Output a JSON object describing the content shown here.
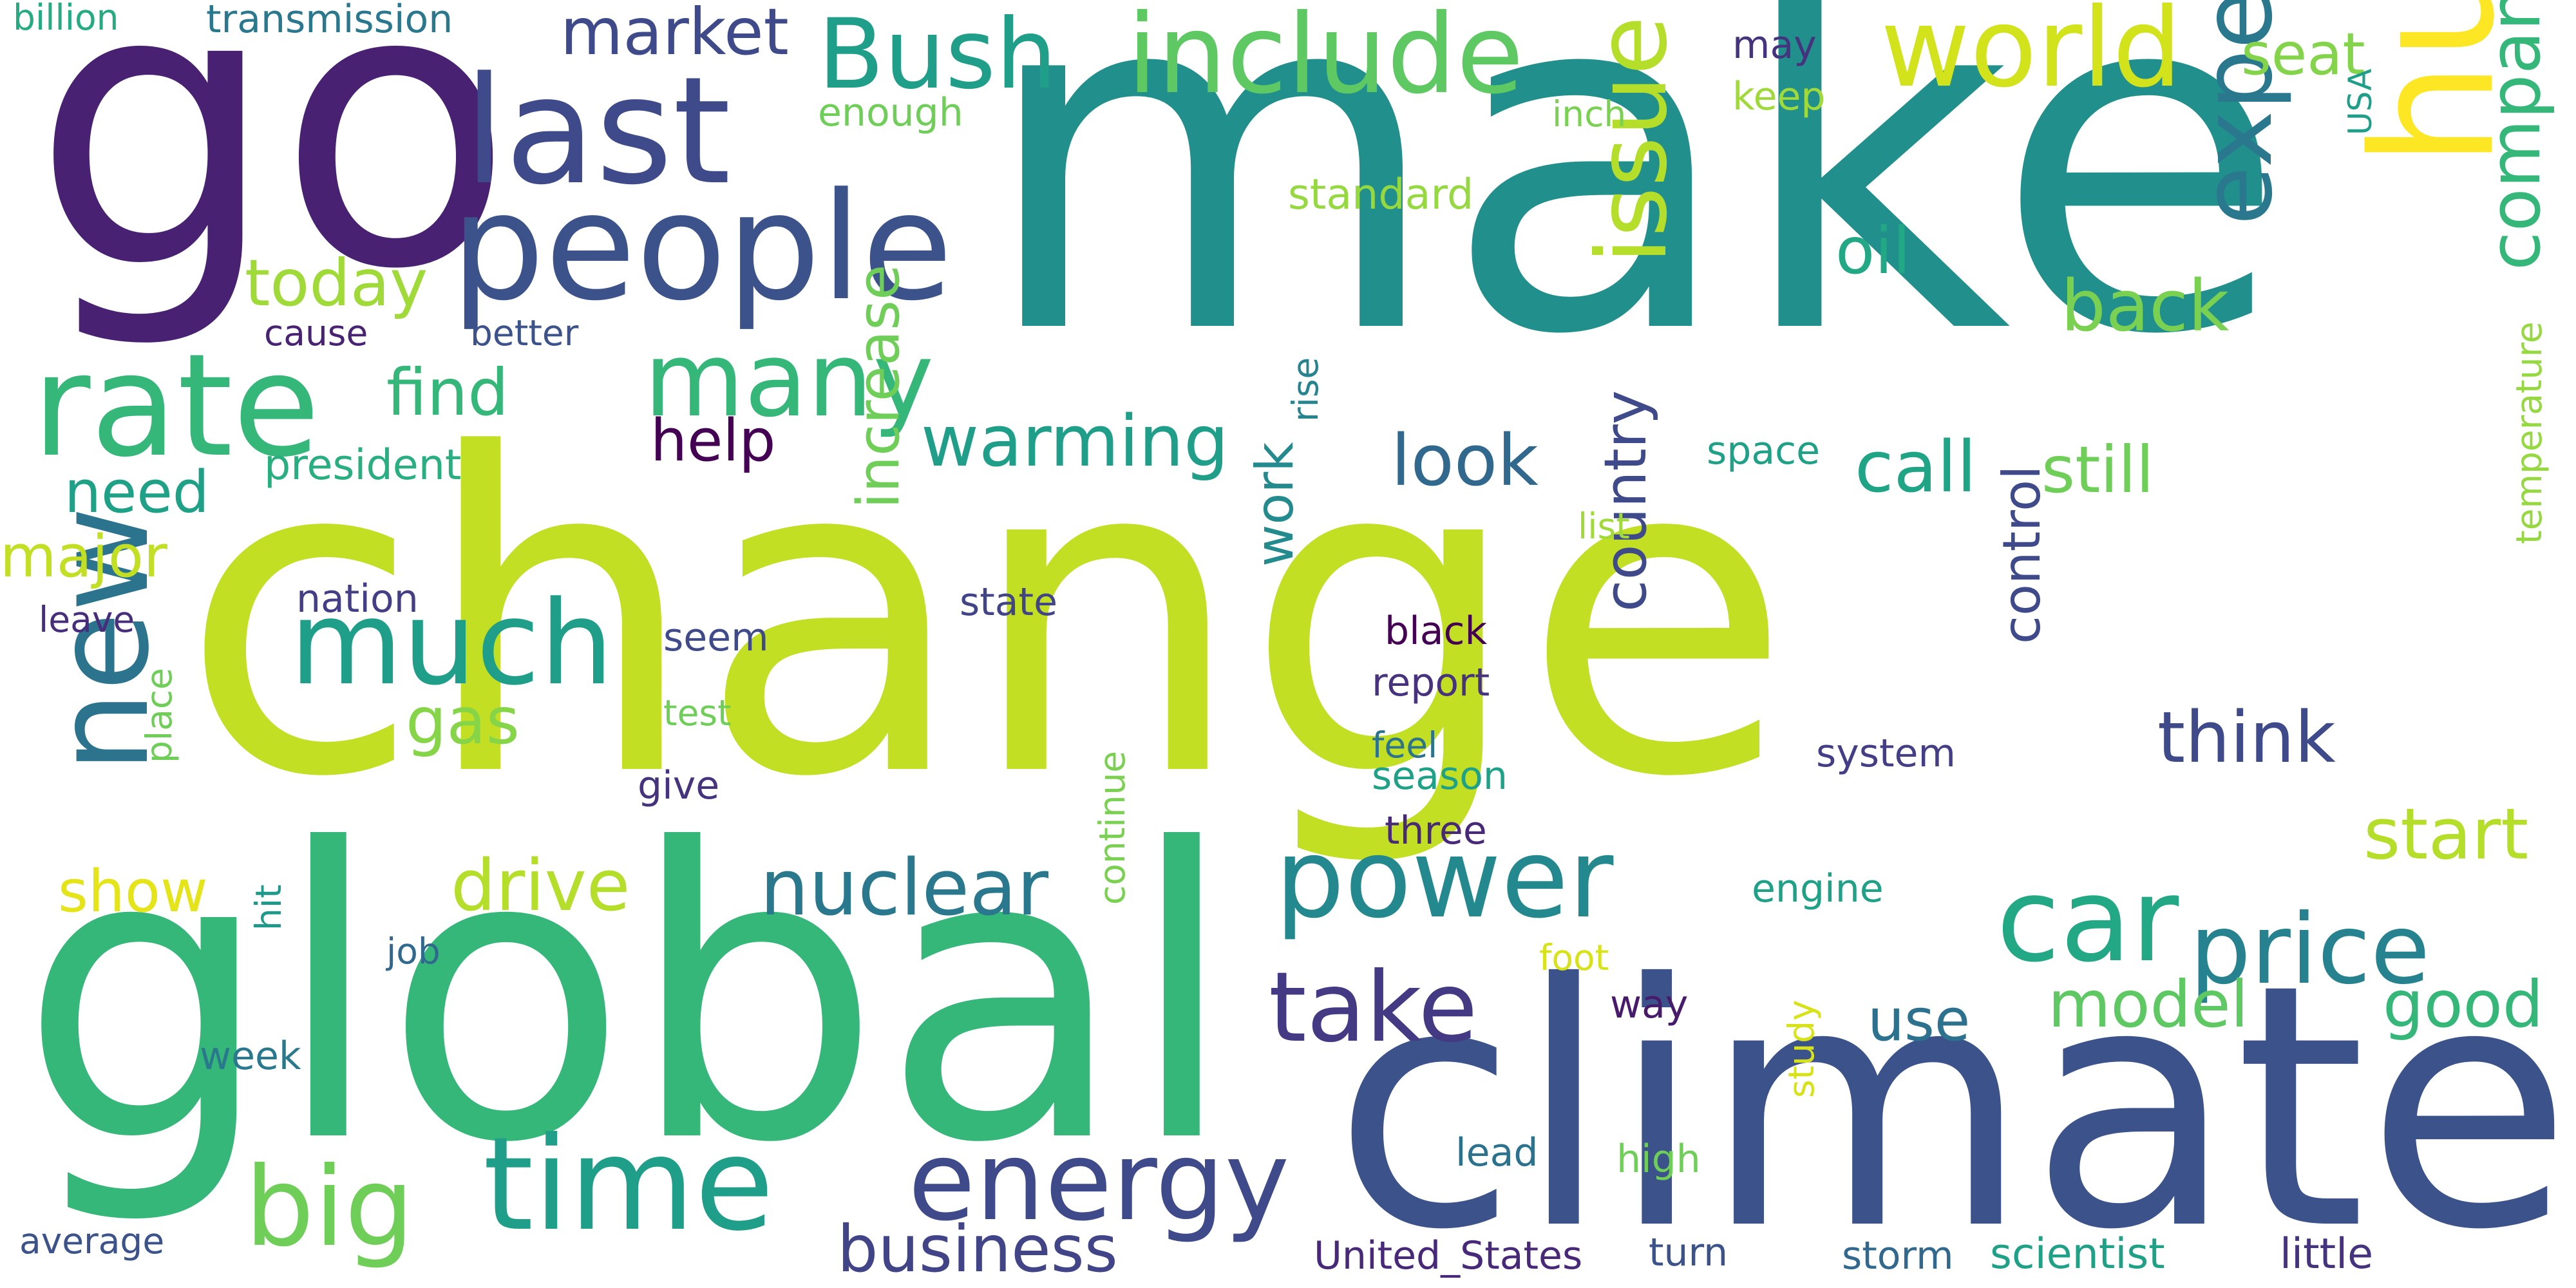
{
  "words": [
    {
      "text": "change",
      "color": "#c2df23"
    },
    {
      "text": "make",
      "color": "#21908d"
    },
    {
      "text": "global",
      "color": "#35b779"
    },
    {
      "text": "climate",
      "color": "#3b528b"
    },
    {
      "text": "go",
      "color": "#482173"
    },
    {
      "text": "hurricane",
      "color": "#fde725"
    },
    {
      "text": "people",
      "color": "#3b528b"
    },
    {
      "text": "last",
      "color": "#3e4a89"
    },
    {
      "text": "include",
      "color": "#5ec962"
    },
    {
      "text": "world",
      "color": "#d2e21b"
    },
    {
      "text": "Bush",
      "color": "#1f9e89"
    },
    {
      "text": "market",
      "color": "#3e4a89"
    },
    {
      "text": "rate",
      "color": "#35b779"
    },
    {
      "text": "new",
      "color": "#2c738e"
    },
    {
      "text": "much",
      "color": "#1f9e89"
    },
    {
      "text": "many",
      "color": "#35b779"
    },
    {
      "text": "issue",
      "color": "#b5de2b"
    },
    {
      "text": "expect",
      "color": "#2a788e"
    },
    {
      "text": "time",
      "color": "#1f9e89"
    },
    {
      "text": "big",
      "color": "#6ece58"
    },
    {
      "text": "energy",
      "color": "#3e4a89"
    },
    {
      "text": "power",
      "color": "#23898e"
    },
    {
      "text": "car",
      "color": "#22a884"
    },
    {
      "text": "price",
      "color": "#26828e"
    },
    {
      "text": "take",
      "color": "#443983"
    },
    {
      "text": "business",
      "color": "#414487"
    },
    {
      "text": "nuclear",
      "color": "#2a788e"
    },
    {
      "text": "warming",
      "color": "#1f9e89"
    },
    {
      "text": "drive",
      "color": "#b5de2b"
    },
    {
      "text": "today",
      "color": "#a0da39"
    },
    {
      "text": "find",
      "color": "#35b779"
    },
    {
      "text": "help",
      "color": "#440154"
    },
    {
      "text": "look",
      "color": "#31688e"
    },
    {
      "text": "call",
      "color": "#20a486"
    },
    {
      "text": "still",
      "color": "#6ece58"
    },
    {
      "text": "back",
      "color": "#7ad151"
    },
    {
      "text": "oil",
      "color": "#22a884"
    },
    {
      "text": "company",
      "color": "#35b779"
    },
    {
      "text": "start",
      "color": "#b5de2b"
    },
    {
      "text": "think",
      "color": "#3e4a89"
    },
    {
      "text": "good",
      "color": "#35b779"
    },
    {
      "text": "model",
      "color": "#5ec962"
    },
    {
      "text": "use",
      "color": "#2c728e"
    },
    {
      "text": "gas",
      "color": "#86d549"
    },
    {
      "text": "need",
      "color": "#1fa187"
    },
    {
      "text": "major",
      "color": "#c2df23"
    },
    {
      "text": "show",
      "color": "#e5e419"
    },
    {
      "text": "increase",
      "color": "#6ece58"
    },
    {
      "text": "country",
      "color": "#3e4a89"
    },
    {
      "text": "control",
      "color": "#3e4a89"
    },
    {
      "text": "work",
      "color": "#238a8d"
    },
    {
      "text": "seat",
      "color": "#84d44b"
    },
    {
      "text": "transmission",
      "color": "#2a788e"
    },
    {
      "text": "billion",
      "color": "#25ab82"
    },
    {
      "text": "enough",
      "color": "#6ece58"
    },
    {
      "text": "inch",
      "color": "#7ad151"
    },
    {
      "text": "keep",
      "color": "#9fda3a"
    },
    {
      "text": "may",
      "color": "#46337e"
    },
    {
      "text": "USA",
      "color": "#1f9e89"
    },
    {
      "text": "standard",
      "color": "#95d840"
    },
    {
      "text": "cause",
      "color": "#482374"
    },
    {
      "text": "better",
      "color": "#3b528b"
    },
    {
      "text": "rise",
      "color": "#25848e"
    },
    {
      "text": "space",
      "color": "#1fa187"
    },
    {
      "text": "president",
      "color": "#29af7f"
    },
    {
      "text": "list",
      "color": "#a0da39"
    },
    {
      "text": "temperature",
      "color": "#95d840"
    },
    {
      "text": "nation",
      "color": "#433e85"
    },
    {
      "text": "leave",
      "color": "#472d7b"
    },
    {
      "text": "state",
      "color": "#414487"
    },
    {
      "text": "seem",
      "color": "#3e4a89"
    },
    {
      "text": "black",
      "color": "#440154"
    },
    {
      "text": "report",
      "color": "#46327e"
    },
    {
      "text": "test",
      "color": "#6ece58"
    },
    {
      "text": "feel",
      "color": "#2c738e"
    },
    {
      "text": "place",
      "color": "#6ece58"
    },
    {
      "text": "give",
      "color": "#46337e"
    },
    {
      "text": "season",
      "color": "#1fa187"
    },
    {
      "text": "system",
      "color": "#433e85"
    },
    {
      "text": "three",
      "color": "#482878"
    },
    {
      "text": "engine",
      "color": "#1fa187"
    },
    {
      "text": "hit",
      "color": "#1f9a8a"
    },
    {
      "text": "job",
      "color": "#31688e"
    },
    {
      "text": "foot",
      "color": "#d8e219"
    },
    {
      "text": "way",
      "color": "#481a6c"
    },
    {
      "text": "continue",
      "color": "#7ad151"
    },
    {
      "text": "week",
      "color": "#2a788e"
    },
    {
      "text": "lead",
      "color": "#2c728e"
    },
    {
      "text": "high",
      "color": "#6ece58"
    },
    {
      "text": "study",
      "color": "#d8e219"
    },
    {
      "text": "average",
      "color": "#3b528b"
    },
    {
      "text": "United_States",
      "color": "#482878"
    },
    {
      "text": "turn",
      "color": "#3b528b"
    },
    {
      "text": "storm",
      "color": "#31688e"
    },
    {
      "text": "scientist",
      "color": "#1fa187"
    },
    {
      "text": "little",
      "color": "#46337e"
    }
  ]
}
